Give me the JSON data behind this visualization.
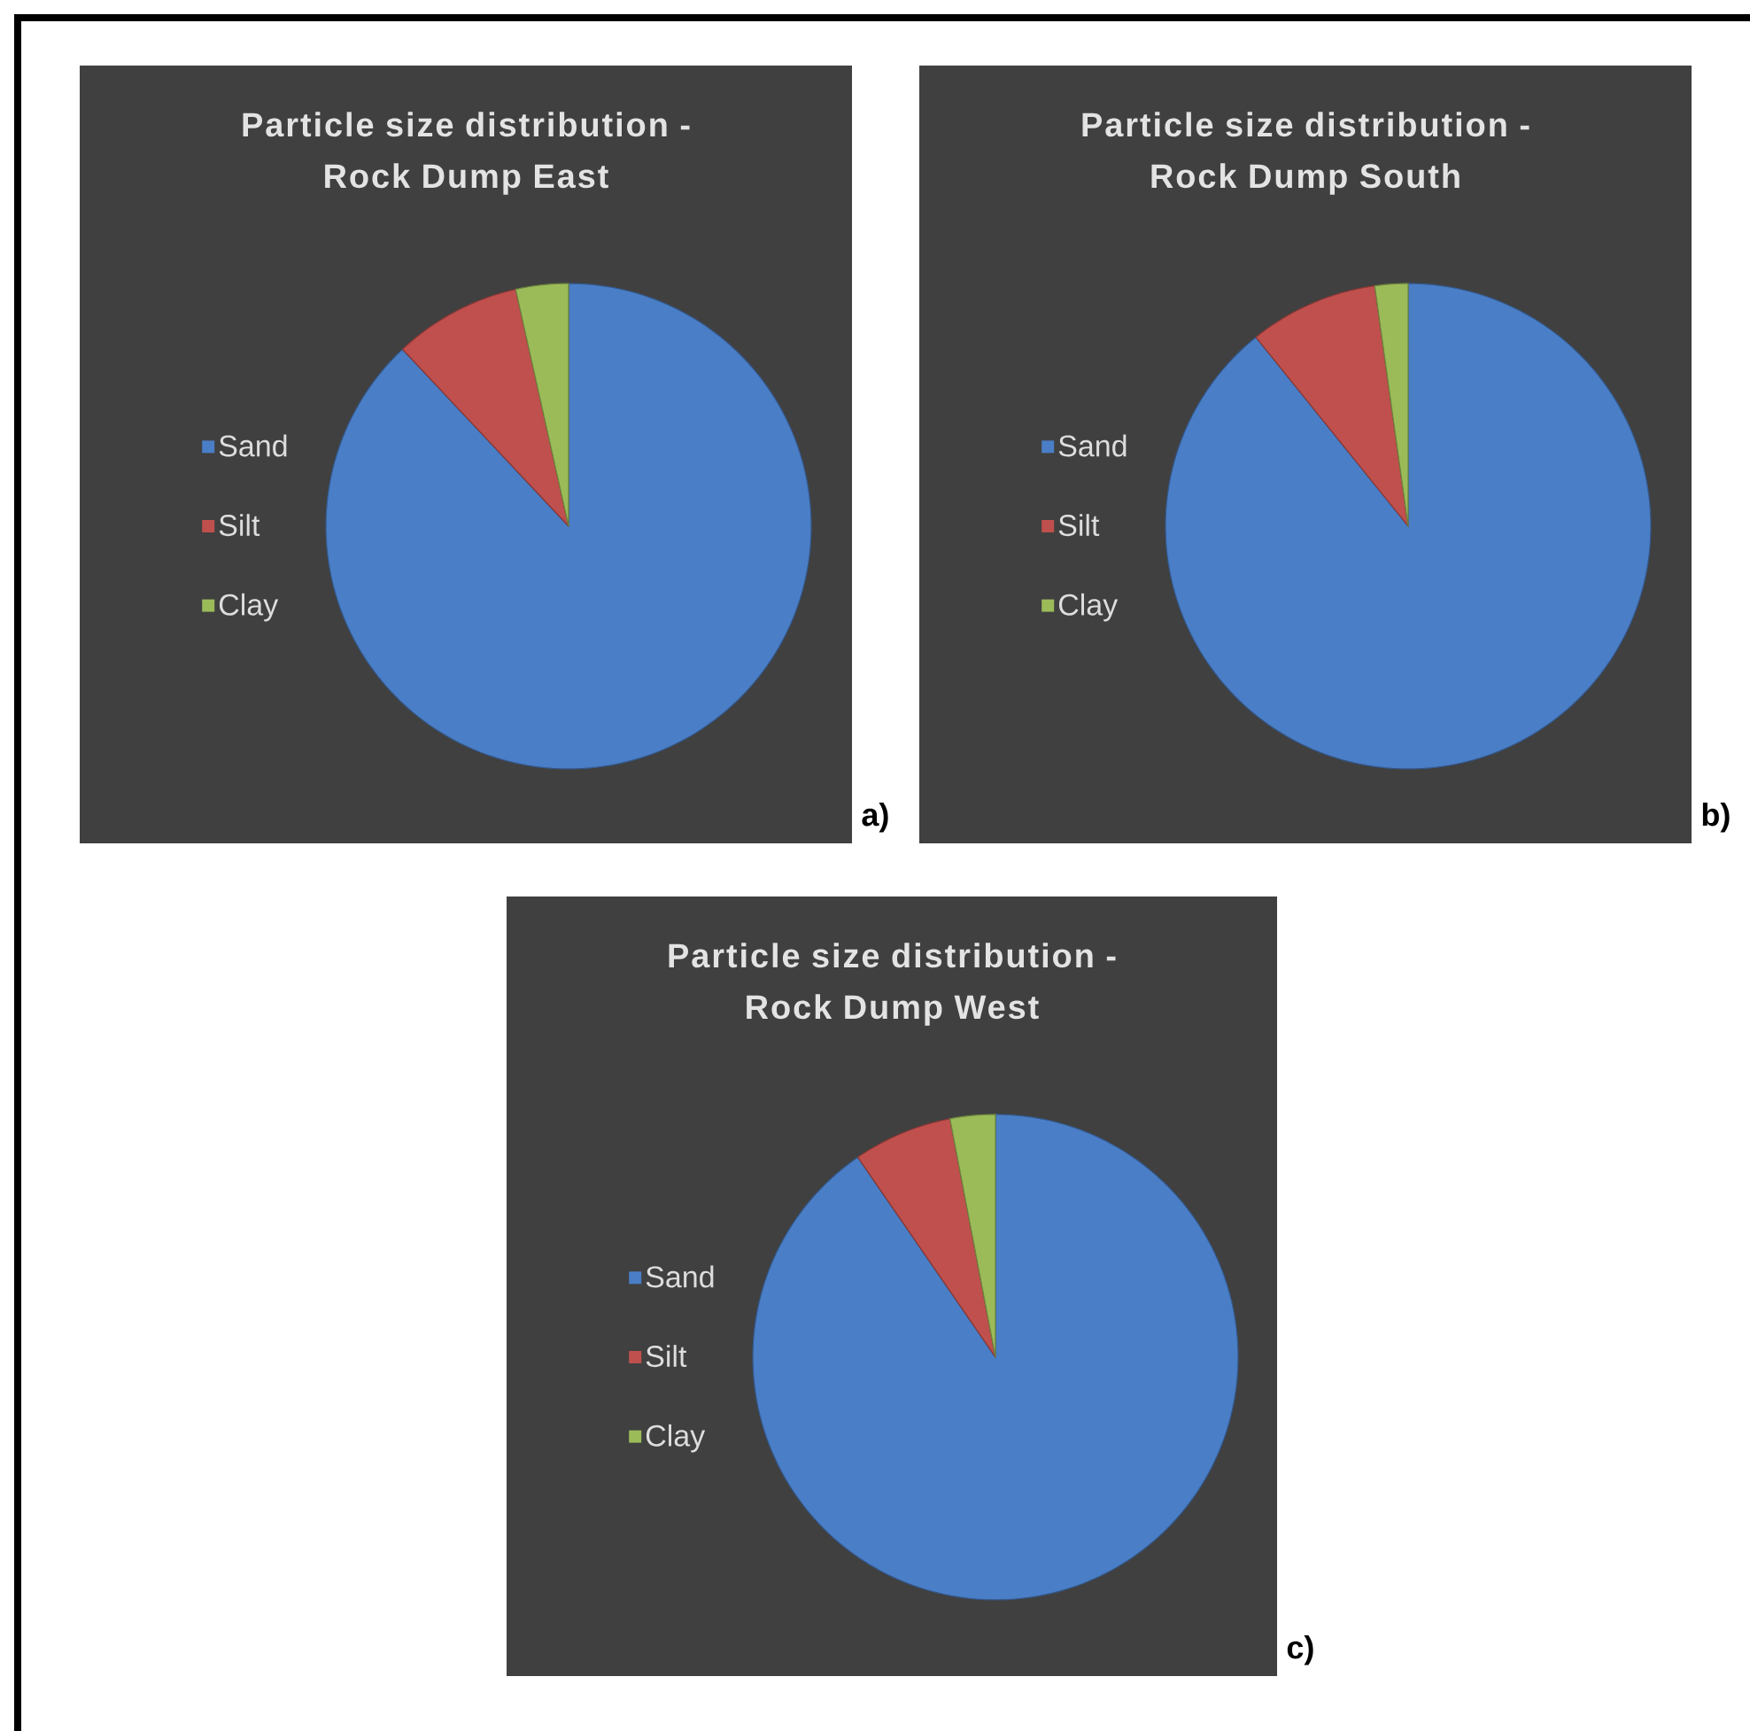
{
  "chart_data": [
    {
      "type": "pie",
      "title": "Particle size distribution - Rock Dump East",
      "categories": [
        "Sand",
        "Silt",
        "Clay"
      ],
      "values": [
        88,
        8.5,
        3.5
      ],
      "colors": [
        "#4a7ec6",
        "#c0504d",
        "#9bbb59"
      ],
      "legend": "left",
      "annotations": [
        "a)"
      ]
    },
    {
      "type": "pie",
      "title": "Particle size distribution - Rock Dump South",
      "categories": [
        "Sand",
        "Silt",
        "Clay"
      ],
      "values": [
        89.2,
        8.6,
        2.2
      ],
      "colors": [
        "#4a7ec6",
        "#c0504d",
        "#9bbb59"
      ],
      "legend": "left",
      "annotations": [
        "b)"
      ]
    },
    {
      "type": "pie",
      "title": "Particle size distribution - Rock Dump West",
      "categories": [
        "Sand",
        "Silt",
        "Clay"
      ],
      "values": [
        90.4,
        6.6,
        3.0
      ],
      "colors": [
        "#4a7ec6",
        "#c0504d",
        "#9bbb59"
      ],
      "legend": "left",
      "annotations": [
        "c)"
      ]
    }
  ]
}
